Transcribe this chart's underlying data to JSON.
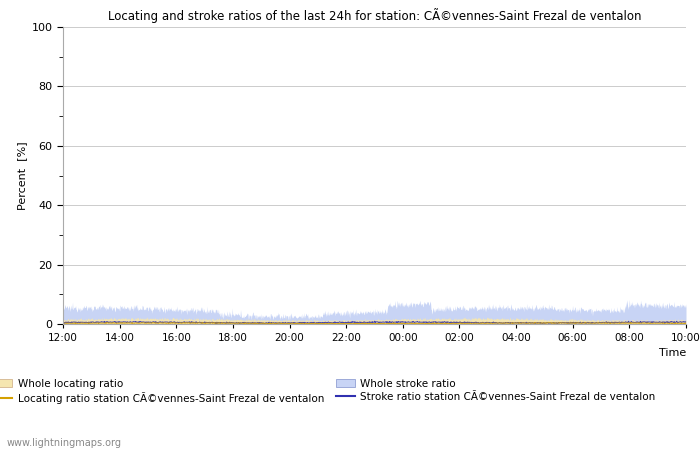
{
  "title": "Locating and stroke ratios of the last 24h for station: CÃ©vennes-Saint Frezal de ventalon",
  "xlabel": "Time",
  "ylabel": "Percent  [%]",
  "ylim": [
    0,
    100
  ],
  "yticks_major": [
    0,
    20,
    40,
    60,
    80,
    100
  ],
  "yticks_minor": [
    10,
    30,
    50,
    70,
    90
  ],
  "x_labels": [
    "12:00",
    "14:00",
    "16:00",
    "18:00",
    "20:00",
    "22:00",
    "00:00",
    "02:00",
    "04:00",
    "06:00",
    "08:00",
    "10:00"
  ],
  "whole_locating_fill_color": "#f5e6b0",
  "whole_stroke_fill_color": "#c8d4f5",
  "locating_line_color": "#d4a000",
  "stroke_line_color": "#3030b0",
  "background_color": "#ffffff",
  "grid_color": "#cccccc",
  "watermark": "www.lightningmaps.org",
  "legend_labels": [
    "Whole locating ratio",
    "Locating ratio station CÃ©vennes-Saint Frezal de ventalon",
    "Whole stroke ratio",
    "Stroke ratio station CÃ©vennes-Saint Frezal de ventalon"
  ]
}
